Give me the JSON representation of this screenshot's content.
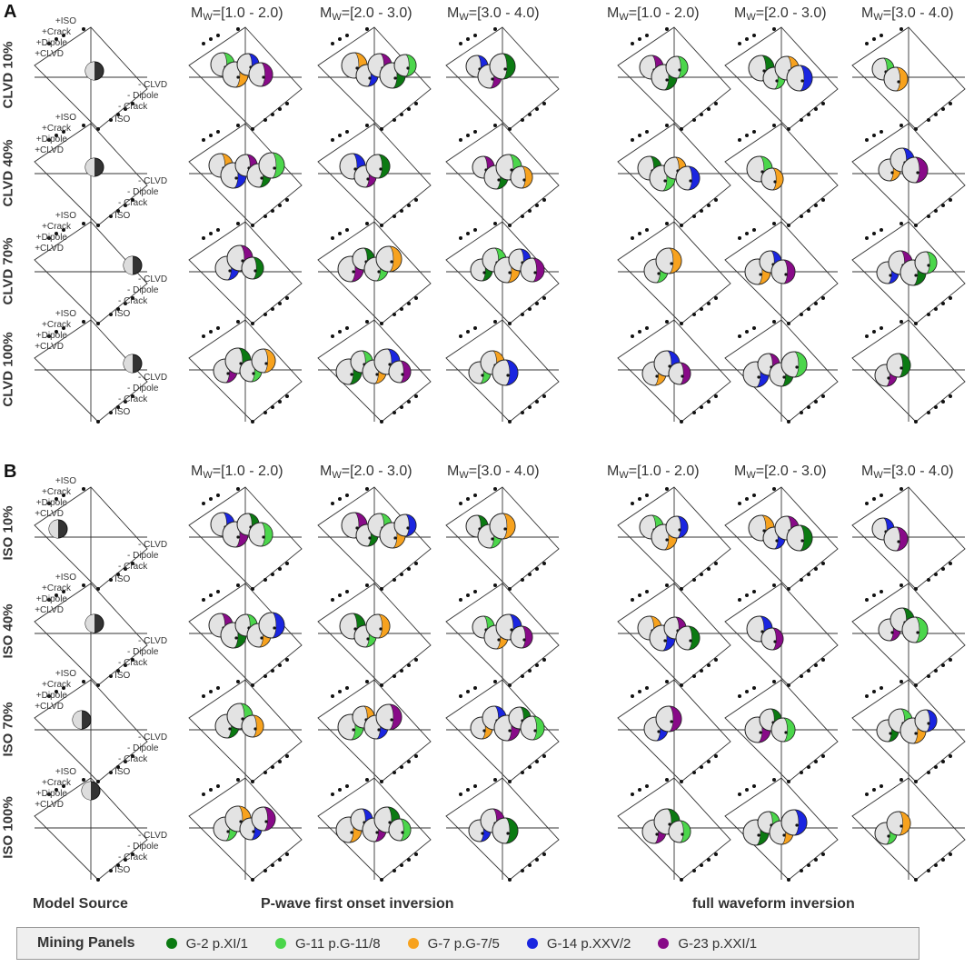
{
  "colors": {
    "G2": "#0b7a12",
    "G11": "#4bd64b",
    "G7": "#f7a21e",
    "G14": "#1a25e0",
    "G23": "#880a88",
    "grey": "#e3e3e3",
    "model": "#333333"
  },
  "panels": [
    {
      "letter": "A",
      "rows": [
        "CLVD 10%",
        "CLVD 40%",
        "CLVD 70%",
        "CLVD 100%"
      ]
    },
    {
      "letter": "B",
      "rows": [
        "ISO 10%",
        "ISO 40%",
        "ISO 70%",
        "ISO 100%"
      ]
    }
  ],
  "headers": {
    "mw_prefix": "M",
    "mw_sub": "W",
    "ranges": [
      "=[1.0 - 2.0)",
      "=[2.0 - 3.0)",
      "=[3.0 - 4.0)"
    ]
  },
  "model_labels": {
    "left": [
      "+ISO",
      "+Crack",
      "+Dipole",
      "+CLVD"
    ],
    "right": [
      "- CLVD",
      "- Dipole",
      "- Crack",
      "- ISO"
    ]
  },
  "footer": {
    "model_source": "Model Source",
    "pwave": "P-wave first onset inversion",
    "full": "full waveform inversion"
  },
  "legend": {
    "title": "Mining Panels",
    "items": [
      {
        "label": "G-2 p.XI/1",
        "color": "#0b7a12"
      },
      {
        "label": "G-11 p.G-11/8",
        "color": "#4bd64b"
      },
      {
        "label": "G-7 p.G-7/5",
        "color": "#f7a21e"
      },
      {
        "label": "G-14 p.XXV/2",
        "color": "#1a25e0"
      },
      {
        "label": "G-23 p.XXI/1",
        "color": "#880a88"
      }
    ]
  }
}
